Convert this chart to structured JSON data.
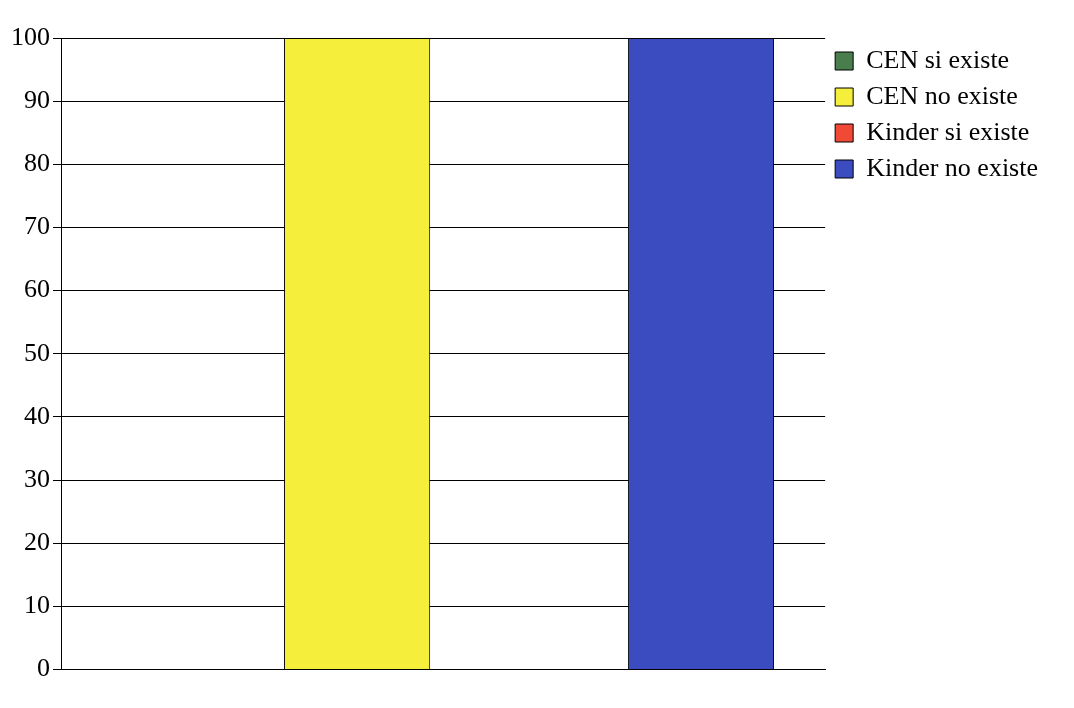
{
  "chart_data": {
    "type": "bar",
    "categories": [
      null
    ],
    "series": [
      {
        "name": "CEN si existe",
        "color": "#4a7d4e",
        "values": [
          0
        ]
      },
      {
        "name": "CEN no existe",
        "color": "#f5ee3a",
        "values": [
          100
        ]
      },
      {
        "name": "Kinder si existe",
        "color": "#f04a36",
        "values": [
          0
        ]
      },
      {
        "name": "Kinder no existe",
        "color": "#3a4cc0",
        "values": [
          100
        ]
      }
    ],
    "ylim": [
      0,
      100
    ],
    "yticks": [
      0,
      10,
      20,
      30,
      40,
      50,
      60,
      70,
      80,
      90,
      100
    ],
    "grid": "y",
    "legend": "top right"
  }
}
